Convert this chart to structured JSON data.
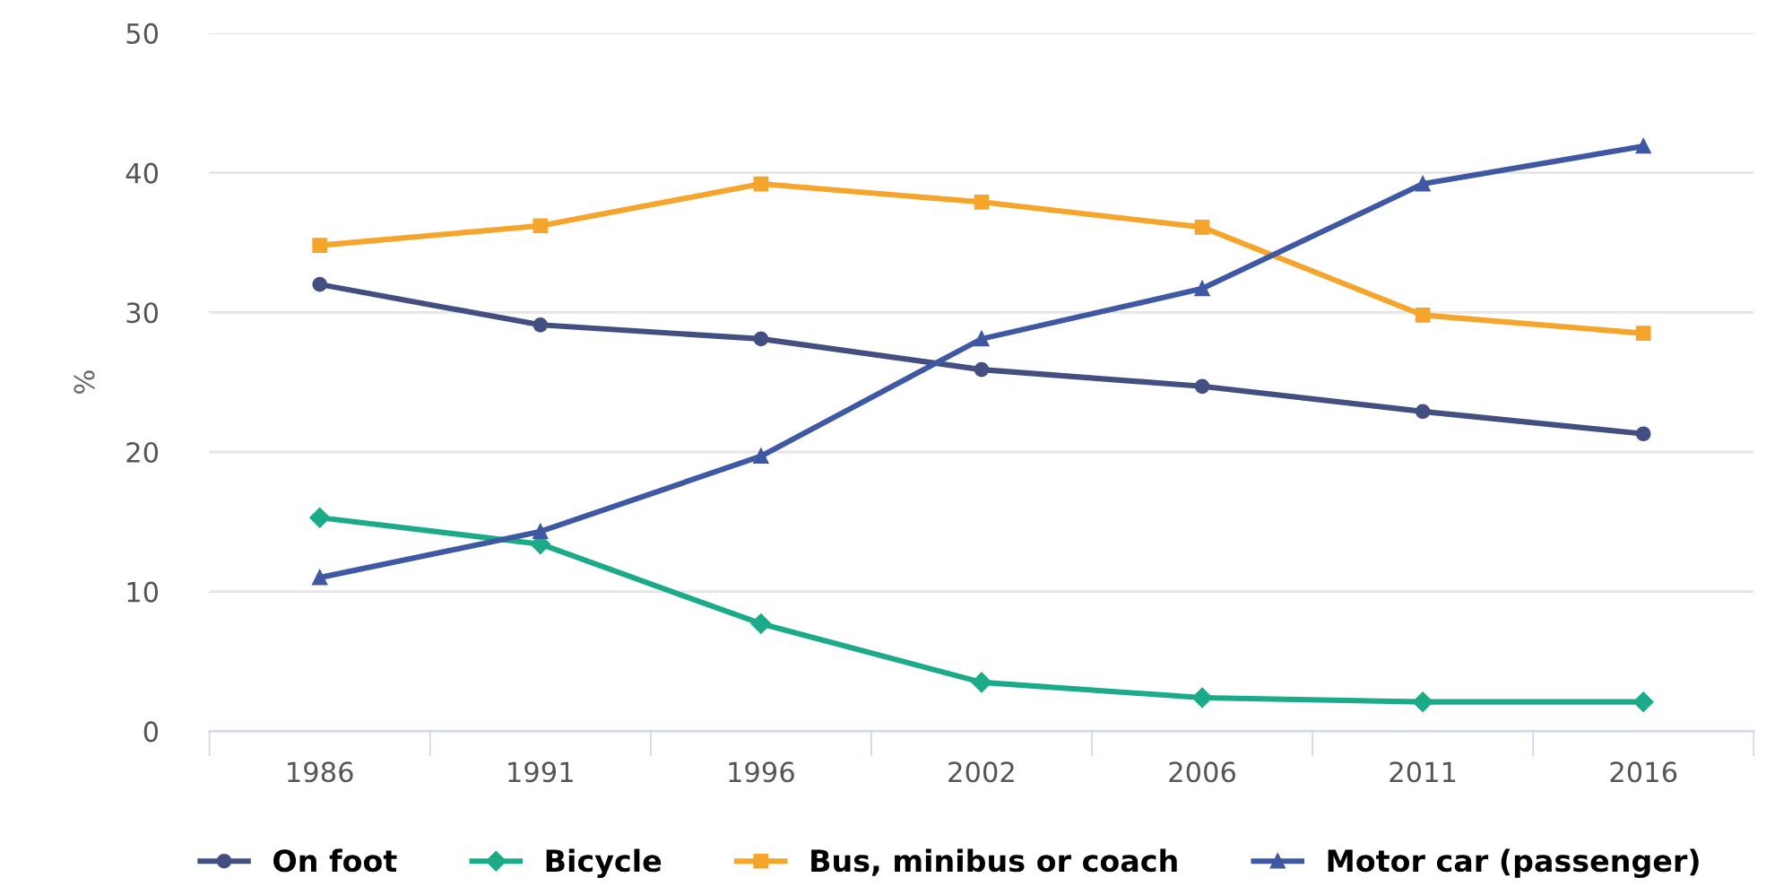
{
  "chart_data": {
    "type": "line",
    "ylabel": "%",
    "categories": [
      "1986",
      "1991",
      "1996",
      "2002",
      "2006",
      "2011",
      "2016"
    ],
    "series": [
      {
        "name": "On foot",
        "color": "#434f80",
        "marker": "circle",
        "values": [
          32.0,
          29.1,
          28.1,
          25.9,
          24.7,
          22.9,
          21.3
        ]
      },
      {
        "name": "Bicycle",
        "color": "#1bab88",
        "marker": "diamond",
        "values": [
          15.3,
          13.4,
          7.7,
          3.5,
          2.4,
          2.1,
          2.1
        ]
      },
      {
        "name": "Bus, minibus or coach",
        "color": "#f5a42c",
        "marker": "square",
        "values": [
          34.8,
          36.2,
          39.2,
          37.9,
          36.1,
          29.8,
          28.5
        ]
      },
      {
        "name": "Motor car (passenger)",
        "color": "#3f58a3",
        "marker": "triangle",
        "values": [
          11.0,
          14.3,
          19.7,
          28.1,
          31.7,
          39.2,
          41.9
        ]
      }
    ],
    "ylim": [
      0,
      50
    ],
    "yticks": [
      0,
      10,
      20,
      30,
      40,
      50
    ],
    "grid": "y",
    "legend": "bottom",
    "line_style": "solid"
  }
}
